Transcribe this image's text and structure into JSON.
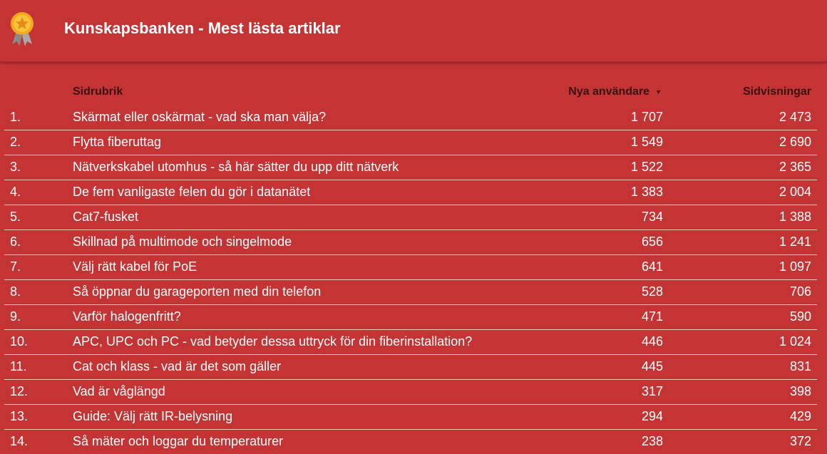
{
  "header": {
    "title": "Kunskapsbanken - Mest lästa artiklar",
    "logo_icon": "award-ribbon-icon"
  },
  "table": {
    "columns": {
      "title": "Sidrubrik",
      "users": "Nya användare",
      "views": "Sidvisningar",
      "sort_icon": "sort-descending-icon"
    },
    "rows": [
      {
        "index": "1.",
        "title": "Skärmat eller oskärmat - vad ska man välja?",
        "users": "1 707",
        "views": "2 473"
      },
      {
        "index": "2.",
        "title": "Flytta fiberuttag",
        "users": "1 549",
        "views": "2 690"
      },
      {
        "index": "3.",
        "title": "Nätverkskabel utomhus - så här sätter du upp ditt nätverk",
        "users": "1 522",
        "views": "2 365"
      },
      {
        "index": "4.",
        "title": "De fem vanligaste felen du gör i datanätet",
        "users": "1 383",
        "views": "2 004"
      },
      {
        "index": "5.",
        "title": "Cat7-fusket",
        "users": "734",
        "views": "1 388"
      },
      {
        "index": "6.",
        "title": "Skillnad på multimode och singelmode",
        "users": "656",
        "views": "1 241"
      },
      {
        "index": "7.",
        "title": "Välj rätt kabel för PoE",
        "users": "641",
        "views": "1 097"
      },
      {
        "index": "8.",
        "title": "Så öppnar du garageporten med din telefon",
        "users": "528",
        "views": "706"
      },
      {
        "index": "9.",
        "title": "Varför halogenfritt?",
        "users": "471",
        "views": "590"
      },
      {
        "index": "10.",
        "title": "APC, UPC och PC - vad betyder dessa uttryck för din fiberinstallation?",
        "users": "446",
        "views": "1 024"
      },
      {
        "index": "11.",
        "title": "Cat och klass - vad är det som gäller",
        "users": "445",
        "views": "831"
      },
      {
        "index": "12.",
        "title": "Vad är våglängd",
        "users": "317",
        "views": "398"
      },
      {
        "index": "13.",
        "title": "Guide: Välj rätt IR-belysning",
        "users": "294",
        "views": "429"
      },
      {
        "index": "14.",
        "title": "Så mäter och loggar du temperaturer",
        "users": "238",
        "views": "372"
      }
    ]
  },
  "colors": {
    "background": "#c53434",
    "text": "#ffffff",
    "header_text_dark": "#3a1212",
    "row_divider": "#f0c8c8"
  }
}
